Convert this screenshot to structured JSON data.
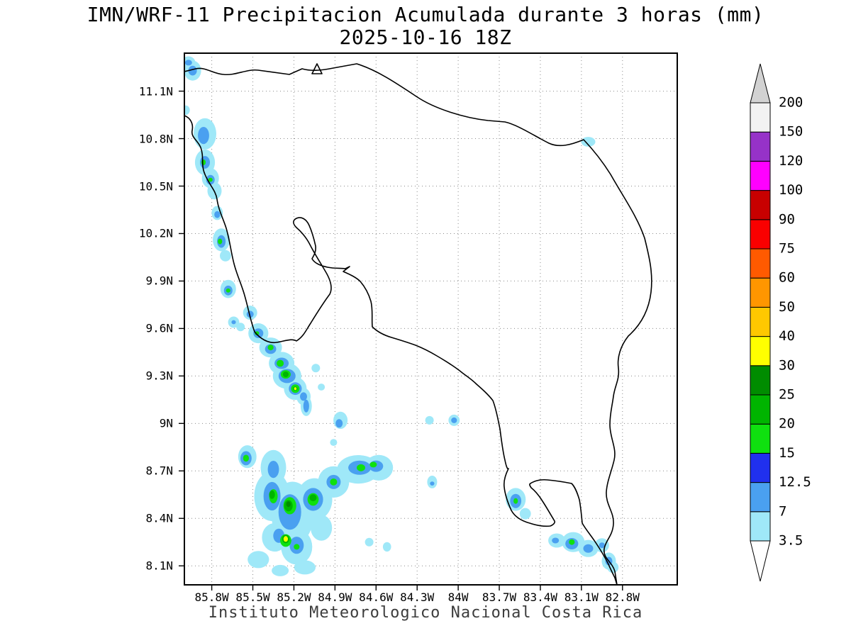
{
  "title": {
    "line1": "IMN/WRF-11 Precipitacion Acumulada durante 3 horas (mm)",
    "line2": "2025-10-16 18Z"
  },
  "footer": {
    "credit": "Instituto Meteorologico Nacional Costa Rica"
  },
  "chart_data": {
    "type": "heatmap",
    "title": "IMN/WRF-11 Precipitacion Acumulada durante 3 horas (mm)",
    "valid_time": "2025-10-16 18Z",
    "units": "mm",
    "grid": "dotted",
    "extent": {
      "lon_west": 86.0,
      "lon_east": 82.4,
      "lat_north": 11.34,
      "lat_south": 7.98
    },
    "x_axis": {
      "ticks": [
        85.8,
        85.5,
        85.2,
        84.9,
        84.6,
        84.3,
        84.0,
        83.7,
        83.4,
        83.1,
        82.8
      ],
      "tick_labels": [
        "85.8W",
        "85.5W",
        "85.2W",
        "84.9W",
        "84.6W",
        "84.3W",
        "84W",
        "83.7W",
        "83.4W",
        "83.1W",
        "82.8W"
      ]
    },
    "y_axis": {
      "ticks": [
        8.1,
        8.4,
        8.7,
        9.0,
        9.3,
        9.6,
        9.9,
        10.2,
        10.5,
        10.8,
        11.1
      ],
      "tick_labels": [
        "8.1N",
        "8.4N",
        "8.7N",
        "9N",
        "9.3N",
        "9.6N",
        "9.9N",
        "10.2N",
        "10.5N",
        "10.8N",
        "11.1N"
      ]
    },
    "colorbar": {
      "levels": [
        3.5,
        7,
        12.5,
        15,
        20,
        25,
        30,
        40,
        50,
        60,
        75,
        90,
        100,
        120,
        150,
        200
      ],
      "level_labels": [
        "3.5",
        "7",
        "12.5",
        "15",
        "20",
        "25",
        "30",
        "40",
        "50",
        "60",
        "75",
        "90",
        "100",
        "120",
        "150",
        "200"
      ],
      "band_colors": [
        "#9fe8f8",
        "#4aa0f0",
        "#2030ee",
        "#0fe00f",
        "#00b400",
        "#008c00",
        "#ffff00",
        "#ffc800",
        "#ff9600",
        "#ff5a00",
        "#fa0000",
        "#c80000",
        "#ff00ff",
        "#9632c8",
        "#f2f2f2"
      ],
      "under_color": "#ffffff",
      "over_color": "#d2d2d2"
    },
    "precip_cells_format": "[lon_W, lat_N, rx_deg, ry_deg, mm]",
    "precip_cells": [
      [
        85.97,
        11.28,
        0.05,
        0.04,
        5
      ],
      [
        85.97,
        11.28,
        0.026,
        0.018,
        10
      ],
      [
        85.94,
        11.23,
        0.062,
        0.063,
        5
      ],
      [
        85.94,
        11.23,
        0.031,
        0.031,
        10
      ],
      [
        85.99,
        10.98,
        0.03,
        0.03,
        5
      ],
      [
        85.85,
        10.83,
        0.083,
        0.099,
        5
      ],
      [
        85.86,
        10.82,
        0.041,
        0.054,
        10
      ],
      [
        85.85,
        10.65,
        0.073,
        0.081,
        5
      ],
      [
        85.85,
        10.65,
        0.036,
        0.04,
        10
      ],
      [
        85.86,
        10.65,
        0.016,
        0.018,
        17
      ],
      [
        85.81,
        10.55,
        0.062,
        0.063,
        5
      ],
      [
        85.81,
        10.54,
        0.031,
        0.031,
        10
      ],
      [
        85.81,
        10.54,
        0.016,
        0.013,
        17
      ],
      [
        85.78,
        10.47,
        0.052,
        0.054,
        5
      ],
      [
        85.76,
        10.33,
        0.041,
        0.045,
        5
      ],
      [
        85.76,
        10.32,
        0.021,
        0.022,
        10
      ],
      [
        85.73,
        10.16,
        0.062,
        0.072,
        5
      ],
      [
        85.73,
        10.15,
        0.031,
        0.04,
        10
      ],
      [
        85.74,
        10.15,
        0.016,
        0.018,
        17
      ],
      [
        85.7,
        10.06,
        0.041,
        0.036,
        5
      ],
      [
        85.68,
        9.85,
        0.057,
        0.058,
        5
      ],
      [
        85.68,
        9.84,
        0.031,
        0.031,
        10
      ],
      [
        85.68,
        9.84,
        0.016,
        0.013,
        17
      ],
      [
        85.64,
        9.64,
        0.041,
        0.036,
        5
      ],
      [
        85.64,
        9.64,
        0.016,
        0.013,
        10
      ],
      [
        85.59,
        9.61,
        0.031,
        0.027,
        5
      ],
      [
        85.52,
        9.7,
        0.052,
        0.045,
        5
      ],
      [
        85.52,
        9.69,
        0.026,
        0.022,
        10
      ],
      [
        85.46,
        9.57,
        0.073,
        0.063,
        5
      ],
      [
        85.46,
        9.57,
        0.036,
        0.031,
        10
      ],
      [
        85.47,
        9.57,
        0.016,
        0.013,
        17
      ],
      [
        85.37,
        9.48,
        0.083,
        0.063,
        5
      ],
      [
        85.37,
        9.47,
        0.041,
        0.031,
        10
      ],
      [
        85.37,
        9.48,
        0.021,
        0.018,
        17
      ],
      [
        85.29,
        9.38,
        0.093,
        0.072,
        5
      ],
      [
        85.29,
        9.38,
        0.052,
        0.036,
        10
      ],
      [
        85.3,
        9.38,
        0.026,
        0.022,
        17
      ],
      [
        85.25,
        9.3,
        0.104,
        0.081,
        5
      ],
      [
        85.25,
        9.3,
        0.062,
        0.045,
        10
      ],
      [
        85.26,
        9.31,
        0.036,
        0.027,
        17
      ],
      [
        85.26,
        9.31,
        0.021,
        0.018,
        22
      ],
      [
        85.19,
        9.22,
        0.083,
        0.072,
        5
      ],
      [
        85.19,
        9.22,
        0.047,
        0.04,
        10
      ],
      [
        85.19,
        9.22,
        0.031,
        0.027,
        17
      ],
      [
        85.19,
        9.22,
        0.016,
        0.013,
        22
      ],
      [
        85.19,
        9.22,
        0.009,
        0.009,
        35
      ],
      [
        85.13,
        9.17,
        0.052,
        0.054,
        5
      ],
      [
        85.13,
        9.17,
        0.026,
        0.027,
        10
      ],
      [
        85.11,
        9.11,
        0.041,
        0.063,
        5
      ],
      [
        85.11,
        9.11,
        0.021,
        0.04,
        10
      ],
      [
        85.04,
        9.35,
        0.031,
        0.027,
        5
      ],
      [
        85.0,
        9.23,
        0.026,
        0.022,
        5
      ],
      [
        84.86,
        9.02,
        0.052,
        0.054,
        5
      ],
      [
        84.87,
        9.0,
        0.026,
        0.027,
        10
      ],
      [
        84.91,
        8.88,
        0.026,
        0.022,
        5
      ],
      [
        84.21,
        9.02,
        0.031,
        0.027,
        5
      ],
      [
        84.19,
        8.63,
        0.036,
        0.04,
        5
      ],
      [
        84.19,
        8.62,
        0.016,
        0.013,
        10
      ],
      [
        84.03,
        9.02,
        0.041,
        0.036,
        5
      ],
      [
        84.03,
        9.02,
        0.021,
        0.018,
        10
      ],
      [
        83.05,
        10.78,
        0.052,
        0.031,
        5
      ],
      [
        85.54,
        8.79,
        0.067,
        0.072,
        5
      ],
      [
        85.55,
        8.78,
        0.041,
        0.045,
        10
      ],
      [
        85.55,
        8.78,
        0.021,
        0.022,
        17
      ],
      [
        85.35,
        8.72,
        0.093,
        0.112,
        5
      ],
      [
        85.36,
        8.54,
        0.13,
        0.157,
        5
      ],
      [
        85.21,
        8.43,
        0.155,
        0.202,
        5
      ],
      [
        85.05,
        8.52,
        0.13,
        0.134,
        5
      ],
      [
        84.91,
        8.63,
        0.114,
        0.099,
        5
      ],
      [
        84.73,
        8.71,
        0.155,
        0.09,
        5
      ],
      [
        84.58,
        8.72,
        0.104,
        0.081,
        5
      ],
      [
        85.18,
        8.22,
        0.114,
        0.112,
        5
      ],
      [
        85.34,
        8.28,
        0.093,
        0.09,
        5
      ],
      [
        85.0,
        8.34,
        0.078,
        0.081,
        5
      ],
      [
        85.46,
        8.14,
        0.078,
        0.054,
        5
      ],
      [
        85.12,
        8.09,
        0.078,
        0.045,
        5
      ],
      [
        85.3,
        8.07,
        0.062,
        0.036,
        5
      ],
      [
        85.35,
        8.71,
        0.041,
        0.054,
        10
      ],
      [
        85.36,
        8.54,
        0.062,
        0.09,
        10
      ],
      [
        85.23,
        8.44,
        0.083,
        0.112,
        10
      ],
      [
        85.06,
        8.52,
        0.073,
        0.072,
        10
      ],
      [
        84.91,
        8.63,
        0.052,
        0.045,
        10
      ],
      [
        84.72,
        8.72,
        0.083,
        0.045,
        10
      ],
      [
        84.6,
        8.73,
        0.052,
        0.036,
        10
      ],
      [
        85.18,
        8.23,
        0.052,
        0.054,
        10
      ],
      [
        85.31,
        8.29,
        0.041,
        0.045,
        10
      ],
      [
        85.35,
        8.54,
        0.031,
        0.045,
        17
      ],
      [
        85.36,
        8.55,
        0.021,
        0.027,
        22
      ],
      [
        85.23,
        8.48,
        0.047,
        0.054,
        17
      ],
      [
        85.24,
        8.48,
        0.031,
        0.036,
        22
      ],
      [
        85.24,
        8.49,
        0.016,
        0.018,
        27
      ],
      [
        85.06,
        8.52,
        0.041,
        0.04,
        17
      ],
      [
        85.06,
        8.53,
        0.026,
        0.022,
        22
      ],
      [
        84.91,
        8.63,
        0.026,
        0.022,
        17
      ],
      [
        84.71,
        8.72,
        0.031,
        0.022,
        17
      ],
      [
        84.62,
        8.74,
        0.026,
        0.018,
        17
      ],
      [
        85.26,
        8.26,
        0.041,
        0.04,
        17
      ],
      [
        85.26,
        8.27,
        0.026,
        0.027,
        22
      ],
      [
        85.26,
        8.27,
        0.016,
        0.018,
        35
      ],
      [
        85.18,
        8.22,
        0.021,
        0.018,
        17
      ],
      [
        84.65,
        8.25,
        0.031,
        0.027,
        5
      ],
      [
        84.52,
        8.22,
        0.03,
        0.03,
        5
      ],
      [
        83.58,
        8.52,
        0.073,
        0.072,
        5
      ],
      [
        83.58,
        8.51,
        0.041,
        0.045,
        10
      ],
      [
        83.58,
        8.51,
        0.016,
        0.018,
        17
      ],
      [
        83.51,
        8.43,
        0.041,
        0.036,
        5
      ],
      [
        83.28,
        8.26,
        0.062,
        0.045,
        5
      ],
      [
        83.29,
        8.26,
        0.026,
        0.018,
        10
      ],
      [
        83.16,
        8.25,
        0.083,
        0.063,
        5
      ],
      [
        83.17,
        8.24,
        0.047,
        0.036,
        10
      ],
      [
        83.17,
        8.25,
        0.021,
        0.018,
        17
      ],
      [
        83.05,
        8.21,
        0.073,
        0.054,
        5
      ],
      [
        83.05,
        8.21,
        0.036,
        0.027,
        10
      ],
      [
        82.95,
        8.23,
        0.052,
        0.045,
        5
      ],
      [
        82.95,
        8.23,
        0.021,
        0.018,
        10
      ],
      [
        82.9,
        8.13,
        0.052,
        0.054,
        5
      ],
      [
        82.9,
        8.13,
        0.026,
        0.027,
        10
      ],
      [
        82.87,
        8.09,
        0.041,
        0.036,
        5
      ]
    ]
  }
}
